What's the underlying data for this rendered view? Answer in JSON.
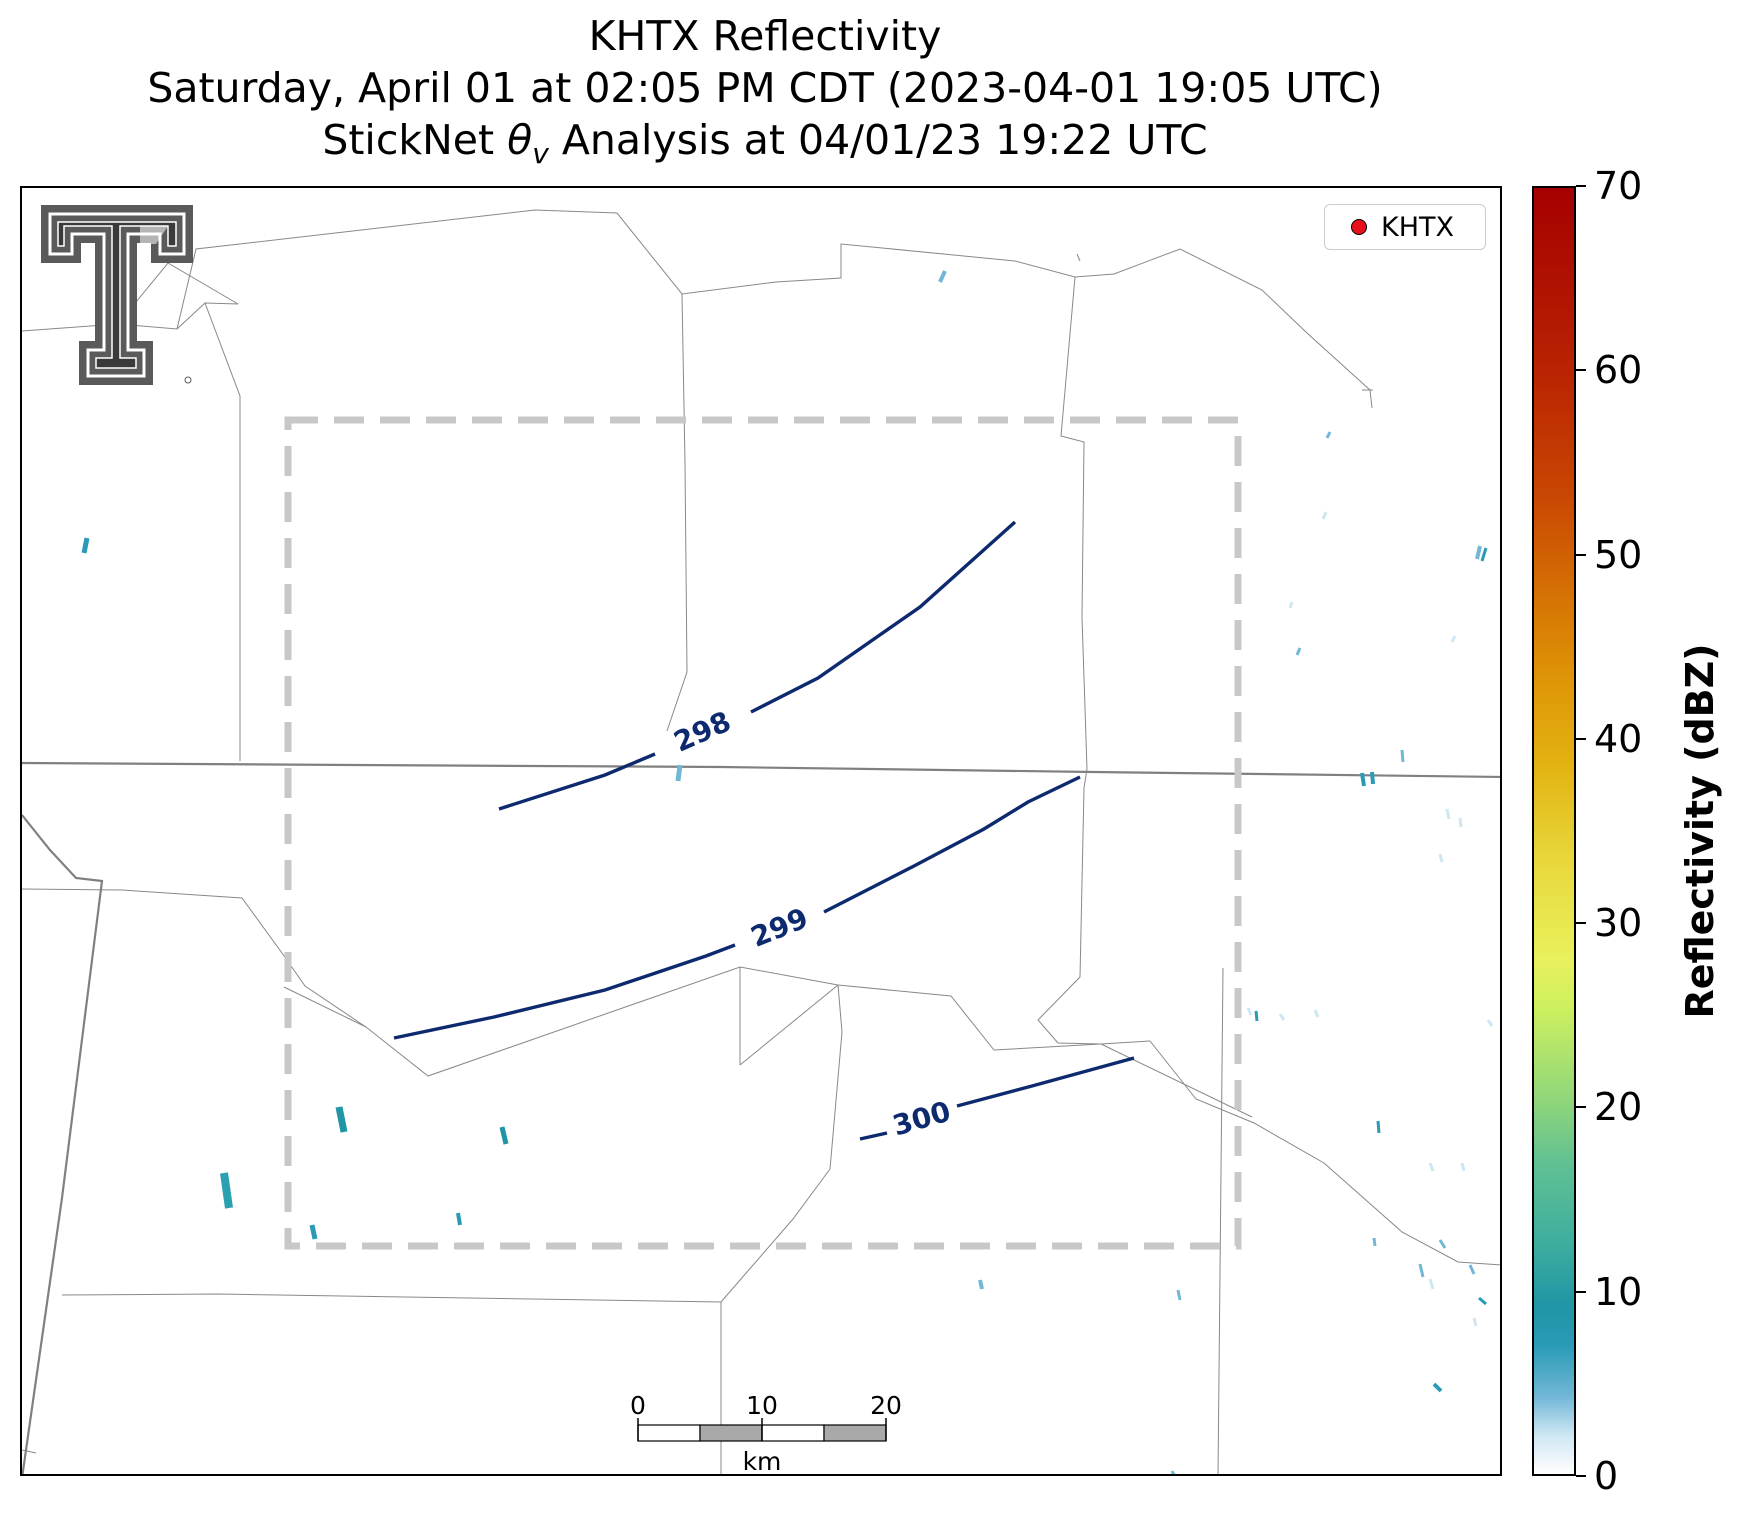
{
  "title": {
    "line1": "KHTX Reflectivity",
    "line2": "Saturday, April 01 at 02:05 PM CDT (2023-04-01 19:05 UTC)",
    "line3_prefix": "StickNet ",
    "line3_theta": "θ",
    "line3_sub": "v",
    "line3_suffix": " Analysis at 04/01/23 19:22 UTC"
  },
  "legend": {
    "label": "KHTX",
    "marker_color": "#e8101a"
  },
  "contours": [
    {
      "label": "298"
    },
    {
      "label": "299"
    },
    {
      "label": "300"
    }
  ],
  "scale_bar": {
    "ticks": [
      "0",
      "10",
      "20"
    ],
    "unit": "km"
  },
  "colorbar": {
    "label": "Reflectivity (dBZ)",
    "ticks": [
      "0",
      "10",
      "20",
      "30",
      "40",
      "50",
      "60",
      "70"
    ],
    "min": 0,
    "max": 70
  },
  "colors": {
    "contour": "#0d2a6e",
    "analysis_box": "#c8c8c8",
    "county_lines": "#888888"
  }
}
